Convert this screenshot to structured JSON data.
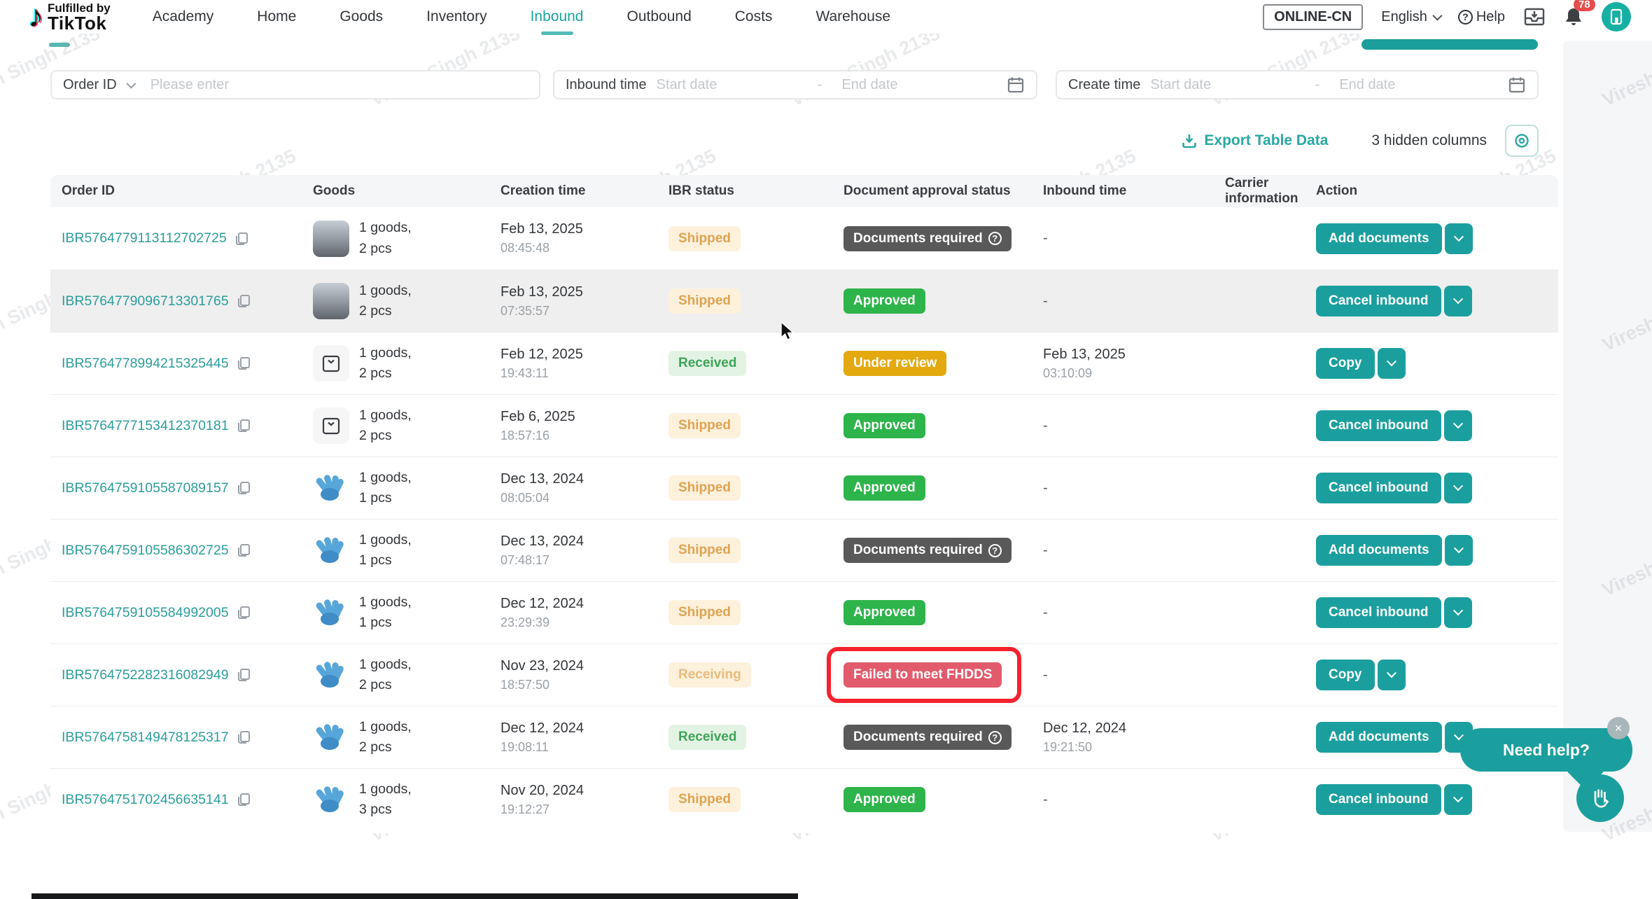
{
  "watermark": "Viresh Singh 2135",
  "nav": {
    "logo_line1": "Fulfilled by",
    "logo_line2": "TikTok",
    "items": [
      {
        "label": "Academy",
        "active": false
      },
      {
        "label": "Home",
        "active": false
      },
      {
        "label": "Goods",
        "active": false
      },
      {
        "label": "Inventory",
        "active": false
      },
      {
        "label": "Inbound",
        "active": true
      },
      {
        "label": "Outbound",
        "active": false
      },
      {
        "label": "Costs",
        "active": false
      },
      {
        "label": "Warehouse",
        "active": false
      }
    ],
    "region": "ONLINE-CN",
    "language": "English",
    "help_label": "Help",
    "notification_count": "78"
  },
  "filters": {
    "order_id": {
      "label": "Order ID",
      "placeholder": "Please enter"
    },
    "inbound_time": {
      "label": "Inbound time",
      "start": "Start date",
      "separator": "-",
      "end": "End date"
    },
    "create_time": {
      "label": "Create time",
      "start": "Start date",
      "separator": "-",
      "end": "End date"
    }
  },
  "toolbar": {
    "export_label": "Export Table Data",
    "hidden_columns_label": "3 hidden columns"
  },
  "table": {
    "columns": [
      "Order ID",
      "Goods",
      "Creation time",
      "IBR status",
      "Document approval status",
      "Inbound time",
      "Carrier information",
      "Action"
    ],
    "rows": [
      {
        "order_id": "IBR5764779113112702725",
        "thumb": "photo",
        "goods1": "1 goods,",
        "goods2": "2 pcs",
        "date": "Feb 13, 2025",
        "time": "08:45:48",
        "ibr": {
          "label": "Shipped",
          "type": "soft-orange"
        },
        "doc": {
          "label": "Documents required",
          "type": "dark",
          "help": true,
          "annotated": false
        },
        "inbound_date": "",
        "inbound_time": "",
        "action": {
          "label": "Add documents"
        },
        "highlighted": false
      },
      {
        "order_id": "IBR5764779096713301765",
        "thumb": "photo",
        "goods1": "1 goods,",
        "goods2": "2 pcs",
        "date": "Feb 13, 2025",
        "time": "07:35:57",
        "ibr": {
          "label": "Shipped",
          "type": "soft-orange"
        },
        "doc": {
          "label": "Approved",
          "type": "green",
          "help": false,
          "annotated": false
        },
        "inbound_date": "",
        "inbound_time": "",
        "action": {
          "label": "Cancel inbound"
        },
        "highlighted": true
      },
      {
        "order_id": "IBR5764778994215325445",
        "thumb": "box",
        "goods1": "1 goods,",
        "goods2": "2 pcs",
        "date": "Feb 12, 2025",
        "time": "19:43:11",
        "ibr": {
          "label": "Received",
          "type": "soft-green"
        },
        "doc": {
          "label": "Under review",
          "type": "amber",
          "help": false,
          "annotated": false
        },
        "inbound_date": "Feb 13, 2025",
        "inbound_time": "03:10:09",
        "action": {
          "label": "Copy"
        },
        "highlighted": false
      },
      {
        "order_id": "IBR5764777153412370181",
        "thumb": "box",
        "goods1": "1 goods,",
        "goods2": "2 pcs",
        "date": "Feb 6, 2025",
        "time": "18:57:16",
        "ibr": {
          "label": "Shipped",
          "type": "soft-orange"
        },
        "doc": {
          "label": "Approved",
          "type": "green",
          "help": false,
          "annotated": false
        },
        "inbound_date": "",
        "inbound_time": "",
        "action": {
          "label": "Cancel inbound"
        },
        "highlighted": false
      },
      {
        "order_id": "IBR5764759105587089157",
        "thumb": "gloves",
        "goods1": "1 goods,",
        "goods2": "1 pcs",
        "date": "Dec 13, 2024",
        "time": "08:05:04",
        "ibr": {
          "label": "Shipped",
          "type": "soft-orange"
        },
        "doc": {
          "label": "Approved",
          "type": "green",
          "help": false,
          "annotated": false
        },
        "inbound_date": "",
        "inbound_time": "",
        "action": {
          "label": "Cancel inbound"
        },
        "highlighted": false
      },
      {
        "order_id": "IBR5764759105586302725",
        "thumb": "gloves",
        "goods1": "1 goods,",
        "goods2": "1 pcs",
        "date": "Dec 13, 2024",
        "time": "07:48:17",
        "ibr": {
          "label": "Shipped",
          "type": "soft-orange"
        },
        "doc": {
          "label": "Documents required",
          "type": "dark",
          "help": true,
          "annotated": false
        },
        "inbound_date": "",
        "inbound_time": "",
        "action": {
          "label": "Add documents"
        },
        "highlighted": false
      },
      {
        "order_id": "IBR5764759105584992005",
        "thumb": "gloves",
        "goods1": "1 goods,",
        "goods2": "1 pcs",
        "date": "Dec 12, 2024",
        "time": "23:29:39",
        "ibr": {
          "label": "Shipped",
          "type": "soft-orange"
        },
        "doc": {
          "label": "Approved",
          "type": "green",
          "help": false,
          "annotated": false
        },
        "inbound_date": "",
        "inbound_time": "",
        "action": {
          "label": "Cancel inbound"
        },
        "highlighted": false
      },
      {
        "order_id": "IBR5764752282316082949",
        "thumb": "gloves",
        "goods1": "1 goods,",
        "goods2": "2 pcs",
        "date": "Nov 23, 2024",
        "time": "18:57:50",
        "ibr": {
          "label": "Receiving",
          "type": "soft-orange-light"
        },
        "doc": {
          "label": "Failed to meet FHDDS",
          "type": "red",
          "help": false,
          "annotated": true
        },
        "inbound_date": "",
        "inbound_time": "",
        "action": {
          "label": "Copy"
        },
        "highlighted": false
      },
      {
        "order_id": "IBR5764758149478125317",
        "thumb": "gloves",
        "goods1": "1 goods,",
        "goods2": "2 pcs",
        "date": "Dec 12, 2024",
        "time": "19:08:11",
        "ibr": {
          "label": "Received",
          "type": "soft-green"
        },
        "doc": {
          "label": "Documents required",
          "type": "dark",
          "help": true,
          "annotated": false
        },
        "inbound_date": "Dec 12, 2024",
        "inbound_time": "19:21:50",
        "action": {
          "label": "Add documents"
        },
        "highlighted": false
      },
      {
        "order_id": "IBR5764751702456635141",
        "thumb": "gloves",
        "goods1": "1 goods,",
        "goods2": "3 pcs",
        "date": "Nov 20, 2024",
        "time": "19:12:27",
        "ibr": {
          "label": "Shipped",
          "type": "soft-orange"
        },
        "doc": {
          "label": "Approved",
          "type": "green",
          "help": false,
          "annotated": false
        },
        "inbound_date": "",
        "inbound_time": "",
        "action": {
          "label": "Cancel inbound"
        },
        "highlighted": false
      }
    ],
    "empty_value": "-"
  },
  "help_bubble": {
    "text": "Need help?",
    "close": "×"
  },
  "colors": {
    "accent_teal": "#1b9f9e",
    "badge_soft_orange_bg": "#fdf1dc",
    "badge_soft_orange_text": "#dfa352",
    "badge_soft_green_bg": "#e3f3e3",
    "badge_soft_green_text": "#3fa45a",
    "badge_green": "#2db44a",
    "badge_amber": "#e3a90f",
    "badge_dark": "#595959",
    "badge_red": "#e25b6c",
    "annotation_red": "#f5222d",
    "notification_red": "#e64c4c"
  }
}
